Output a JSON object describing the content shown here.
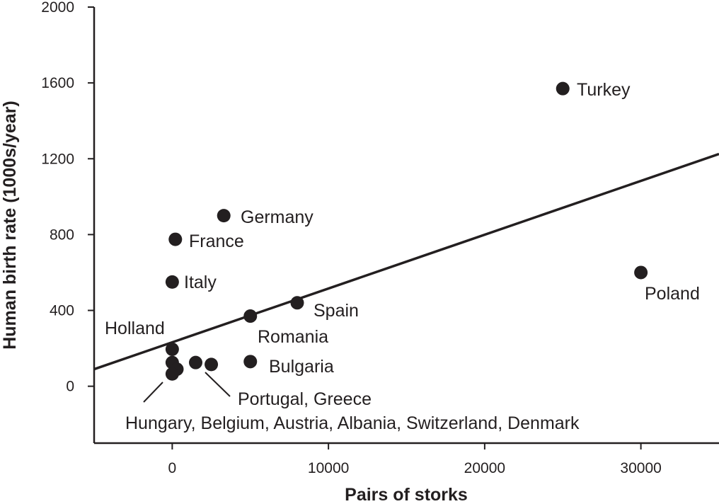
{
  "chart_data": {
    "type": "scatter",
    "title": "",
    "xlabel": "Pairs of storks",
    "ylabel": "Human birth rate (1000s/year)",
    "xlim": [
      -5000,
      35000
    ],
    "ylim": [
      -300,
      2000
    ],
    "x_ticks": [
      0,
      10000,
      20000,
      30000
    ],
    "x_tick_labels": [
      "0",
      "10000",
      "20000",
      "30000"
    ],
    "y_ticks": [
      0,
      400,
      800,
      1200,
      1600,
      2000
    ],
    "y_tick_labels": [
      "0",
      "400",
      "800",
      "1200",
      "1600",
      "2000"
    ],
    "grid": false,
    "points": [
      {
        "x": 25000,
        "y": 1570
      },
      {
        "x": 30000,
        "y": 600
      },
      {
        "x": 3300,
        "y": 900
      },
      {
        "x": 200,
        "y": 775
      },
      {
        "x": 0,
        "y": 550
      },
      {
        "x": 8000,
        "y": 440
      },
      {
        "x": 5000,
        "y": 370
      },
      {
        "x": 5000,
        "y": 130
      },
      {
        "x": 0,
        "y": 195
      },
      {
        "x": 1500,
        "y": 125
      },
      {
        "x": 2500,
        "y": 115
      },
      {
        "x": 0,
        "y": 125
      },
      {
        "x": 300,
        "y": 90
      },
      {
        "x": 0,
        "y": 65
      }
    ],
    "trend_line": {
      "x": [
        -5000,
        35000
      ],
      "y": [
        90,
        1225
      ]
    },
    "annotations": [
      {
        "text": "Turkey"
      },
      {
        "text": "Poland"
      },
      {
        "text": "Germany"
      },
      {
        "text": "France"
      },
      {
        "text": "Italy"
      },
      {
        "text": "Spain"
      },
      {
        "text": "Romania"
      },
      {
        "text": "Bulgaria"
      },
      {
        "text": "Holland"
      },
      {
        "text": "Portugal, Greece"
      },
      {
        "text": "Hungary, Belgium, Austria, Albania, Switzerland, Denmark"
      }
    ]
  }
}
